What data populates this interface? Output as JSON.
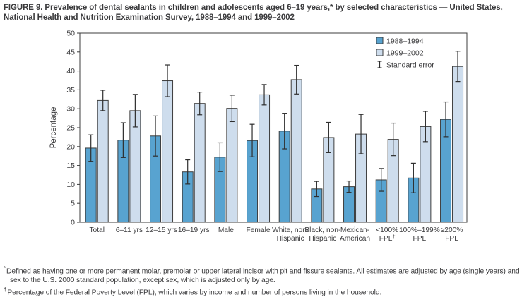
{
  "figure": {
    "title": "FIGURE 9. Prevalence of dental sealants in children and adolescents aged 6–19 years,* by selected characteristics — United States, National Health and Nutrition Examination Survey, 1988–1994 and 1999–2002",
    "footnotes": [
      {
        "marker": "*",
        "text": "Defined as having one or more permanent molar, premolar or upper lateral incisor with pit and fissure sealants. All estimates are adjusted by age (single years) and sex to the U.S. 2000 standard population, except sex, which is adjusted only by age."
      },
      {
        "marker": "†",
        "text": "Percentage of the Federal Poverty Level (FPL), which varies by income and number of persons living in the household."
      }
    ]
  },
  "chart_data": {
    "type": "bar",
    "title": "",
    "xlabel": "",
    "ylabel": "Percentage",
    "ylim": [
      0,
      50
    ],
    "ytick_step": 5,
    "grid": false,
    "legend_position": "top-right-inside",
    "error_bar_label": "Standard error",
    "categories": [
      "Total",
      "6–11 yrs",
      "12–15 yrs",
      "16–19 yrs",
      "Male",
      "Female",
      "White, non-Hispanic",
      "Black, non-Hispanic",
      "Mexican-American",
      "<100% FPL",
      "100%–199% FPL",
      "≥200% FPL"
    ],
    "category_label_lines": [
      [
        "Total"
      ],
      [
        "6–11 yrs"
      ],
      [
        "12–15 yrs"
      ],
      [
        "16–19 yrs"
      ],
      [
        "Male"
      ],
      [
        "Female"
      ],
      [
        "White, non-",
        "Hispanic"
      ],
      [
        "Black, non-",
        "Hispanic"
      ],
      [
        "Mexican-",
        "American"
      ],
      [
        "<100%",
        "FPL†"
      ],
      [
        "100%–199%",
        "FPL"
      ],
      [
        "≥200%",
        "FPL"
      ]
    ],
    "series": [
      {
        "name": "1988–1994",
        "color": "#58a3d0",
        "values": [
          19.6,
          21.7,
          22.8,
          13.3,
          17.2,
          21.6,
          24.1,
          8.8,
          9.4,
          11.2,
          11.7,
          27.2
        ],
        "stderr": [
          3.5,
          4.6,
          5.3,
          3.2,
          3.8,
          4.3,
          4.7,
          2.0,
          1.5,
          3.0,
          3.9,
          4.6
        ]
      },
      {
        "name": "1999–2002",
        "color": "#cedded",
        "values": [
          32.2,
          29.5,
          37.4,
          31.4,
          30.1,
          33.7,
          37.7,
          22.4,
          23.3,
          21.9,
          25.3,
          41.2
        ],
        "stderr": [
          2.7,
          4.3,
          4.2,
          3.0,
          3.5,
          2.7,
          3.8,
          4.0,
          5.2,
          4.3,
          4.0,
          4.0
        ]
      }
    ],
    "colors": {
      "bar_stroke": "#3d3d3d",
      "axis": "#3d3d3d",
      "error_bar": "#2e2e2e",
      "text": "#3a3a3c"
    }
  }
}
